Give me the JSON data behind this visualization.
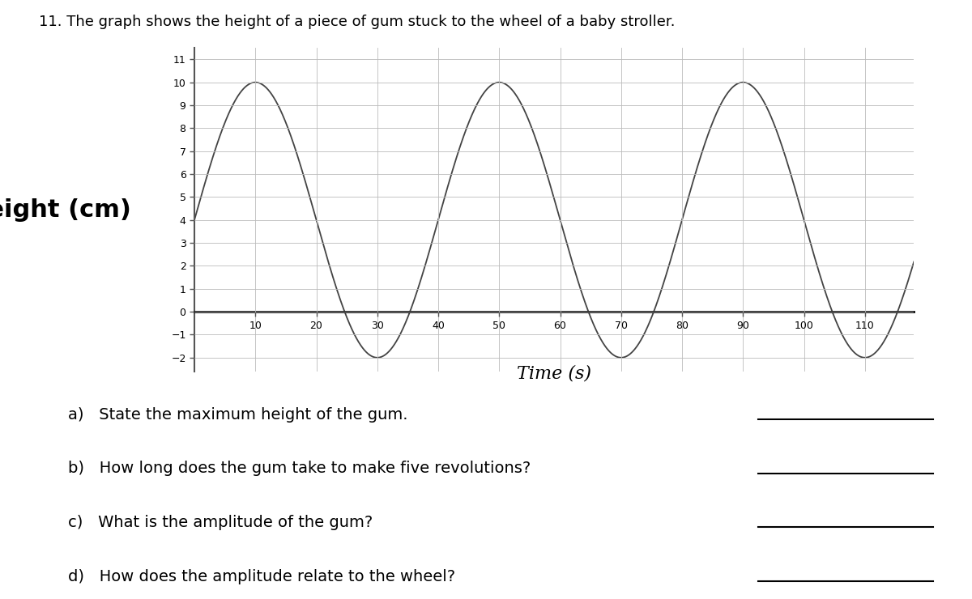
{
  "title": "11. The graph shows the height of a piece of gum stuck to the wheel of a baby stroller.",
  "ylabel": "Height (cm)",
  "xlabel": "Time (s)",
  "amplitude": 6,
  "midline": 4,
  "period": 40,
  "t_start": 0,
  "t_end": 120,
  "x_ticks": [
    10,
    20,
    30,
    40,
    50,
    60,
    70,
    80,
    90,
    100,
    110
  ],
  "y_ticks": [
    -2,
    -1,
    0,
    1,
    2,
    3,
    4,
    5,
    6,
    7,
    8,
    9,
    10,
    11
  ],
  "xlim": [
    0,
    118
  ],
  "ylim": [
    -2.6,
    11.5
  ],
  "line_color": "#444444",
  "grid_color": "#bbbbbb",
  "background_color": "#ffffff",
  "questions": [
    "a)   State the maximum height of the gum.",
    "b)   How long does the gum take to make five revolutions?",
    "c)   What is the amplitude of the gum?",
    "d)   How does the amplitude relate to the wheel?"
  ],
  "title_fontsize": 13,
  "ylabel_fontsize": 22,
  "xlabel_fontsize": 16,
  "tick_fontsize": 9,
  "question_fontsize": 14
}
